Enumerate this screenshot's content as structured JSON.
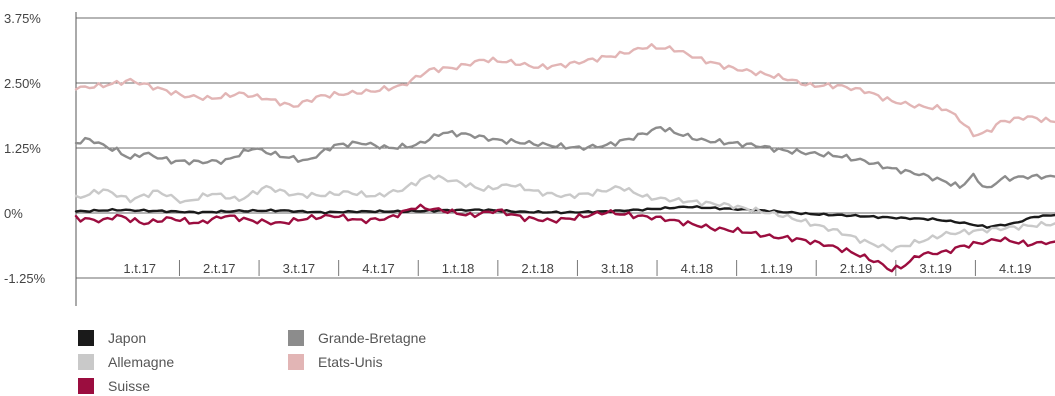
{
  "chart_data": {
    "type": "line",
    "title": "",
    "xlabel": "",
    "ylabel": "",
    "ylim": [
      -1.75,
      3.75
    ],
    "xlim": [
      0,
      144
    ],
    "y_ticks": [
      {
        "value": -1.25,
        "label": "-1.25%"
      },
      {
        "value": 0,
        "label": "0%"
      },
      {
        "value": 1.25,
        "label": "1.25%"
      },
      {
        "value": 2.5,
        "label": "2.50%"
      },
      {
        "value": 3.75,
        "label": "3.75%"
      }
    ],
    "x_categories": [
      "1.t.17",
      "2.t.17",
      "3.t.17",
      "4.t.17",
      "1.t.18",
      "2.t.18",
      "3.t.18",
      "4.t.18",
      "1.t.19",
      "2.t.19",
      "3.t.19",
      "4.t.19"
    ],
    "grid": "horizontal",
    "legend_position": "bottom-left",
    "series": [
      {
        "name": "Japon",
        "color": "#1a1a1a",
        "width": 2.4,
        "points": [
          [
            0,
            0.03
          ],
          [
            6,
            0.06
          ],
          [
            12,
            0.04
          ],
          [
            18,
            0.01
          ],
          [
            24,
            0.04
          ],
          [
            30,
            0.05
          ],
          [
            36,
            0.01
          ],
          [
            42,
            0.03
          ],
          [
            48,
            0.03
          ],
          [
            54,
            0.05
          ],
          [
            60,
            0.06
          ],
          [
            66,
            0.02
          ],
          [
            72,
            0.01
          ],
          [
            78,
            0.03
          ],
          [
            84,
            0.07
          ],
          [
            90,
            0.12
          ],
          [
            96,
            0.08
          ],
          [
            102,
            0.04
          ],
          [
            108,
            -0.02
          ],
          [
            114,
            -0.05
          ],
          [
            120,
            -0.09
          ],
          [
            126,
            -0.12
          ],
          [
            130,
            -0.18
          ],
          [
            134,
            -0.27
          ],
          [
            138,
            -0.2
          ],
          [
            141,
            -0.07
          ],
          [
            144,
            -0.04
          ]
        ]
      },
      {
        "name": "Allemagne",
        "color": "#c9c9c9",
        "width": 2.4,
        "points": [
          [
            0,
            0.28
          ],
          [
            4,
            0.45
          ],
          [
            8,
            0.25
          ],
          [
            12,
            0.42
          ],
          [
            16,
            0.2
          ],
          [
            20,
            0.38
          ],
          [
            24,
            0.25
          ],
          [
            28,
            0.5
          ],
          [
            32,
            0.35
          ],
          [
            36,
            0.34
          ],
          [
            40,
            0.4
          ],
          [
            44,
            0.32
          ],
          [
            48,
            0.45
          ],
          [
            52,
            0.72
          ],
          [
            56,
            0.6
          ],
          [
            60,
            0.45
          ],
          [
            64,
            0.55
          ],
          [
            68,
            0.4
          ],
          [
            72,
            0.32
          ],
          [
            76,
            0.38
          ],
          [
            80,
            0.5
          ],
          [
            84,
            0.3
          ],
          [
            88,
            0.25
          ],
          [
            92,
            0.2
          ],
          [
            96,
            0.15
          ],
          [
            100,
            0.05
          ],
          [
            104,
            -0.05
          ],
          [
            108,
            -0.2
          ],
          [
            112,
            -0.35
          ],
          [
            116,
            -0.55
          ],
          [
            120,
            -0.7
          ],
          [
            124,
            -0.55
          ],
          [
            128,
            -0.4
          ],
          [
            132,
            -0.35
          ],
          [
            136,
            -0.3
          ],
          [
            140,
            -0.25
          ],
          [
            144,
            -0.2
          ]
        ]
      },
      {
        "name": "Suisse",
        "color": "#9b0d3f",
        "width": 2.4,
        "points": [
          [
            0,
            -0.1
          ],
          [
            4,
            -0.15
          ],
          [
            6,
            -0.05
          ],
          [
            10,
            -0.2
          ],
          [
            14,
            -0.1
          ],
          [
            18,
            -0.2
          ],
          [
            22,
            -0.05
          ],
          [
            26,
            -0.15
          ],
          [
            30,
            -0.2
          ],
          [
            34,
            -0.1
          ],
          [
            38,
            -0.05
          ],
          [
            42,
            -0.15
          ],
          [
            46,
            -0.1
          ],
          [
            50,
            0.12
          ],
          [
            54,
            0.05
          ],
          [
            58,
            -0.05
          ],
          [
            62,
            0.05
          ],
          [
            66,
            -0.1
          ],
          [
            70,
            -0.15
          ],
          [
            74,
            -0.08
          ],
          [
            78,
            0.02
          ],
          [
            82,
            -0.05
          ],
          [
            86,
            -0.1
          ],
          [
            90,
            -0.2
          ],
          [
            94,
            -0.3
          ],
          [
            98,
            -0.35
          ],
          [
            102,
            -0.45
          ],
          [
            106,
            -0.5
          ],
          [
            110,
            -0.6
          ],
          [
            114,
            -0.75
          ],
          [
            118,
            -0.95
          ],
          [
            120,
            -1.1
          ],
          [
            122,
            -1.0
          ],
          [
            124,
            -0.8
          ],
          [
            128,
            -0.75
          ],
          [
            130,
            -0.65
          ],
          [
            134,
            -0.55
          ],
          [
            136,
            -0.5
          ],
          [
            140,
            -0.6
          ],
          [
            144,
            -0.55
          ]
        ]
      },
      {
        "name": "Grande-Bretagne",
        "color": "#8c8c8c",
        "width": 2.4,
        "points": [
          [
            0,
            1.35
          ],
          [
            2,
            1.42
          ],
          [
            4,
            1.3
          ],
          [
            6,
            1.2
          ],
          [
            8,
            1.05
          ],
          [
            10,
            1.15
          ],
          [
            14,
            1.0
          ],
          [
            18,
            0.98
          ],
          [
            22,
            1.0
          ],
          [
            26,
            1.25
          ],
          [
            30,
            1.1
          ],
          [
            34,
            1.0
          ],
          [
            38,
            1.3
          ],
          [
            42,
            1.35
          ],
          [
            46,
            1.25
          ],
          [
            50,
            1.3
          ],
          [
            54,
            1.55
          ],
          [
            58,
            1.5
          ],
          [
            62,
            1.4
          ],
          [
            66,
            1.35
          ],
          [
            70,
            1.3
          ],
          [
            74,
            1.25
          ],
          [
            78,
            1.3
          ],
          [
            82,
            1.45
          ],
          [
            86,
            1.65
          ],
          [
            88,
            1.55
          ],
          [
            92,
            1.4
          ],
          [
            96,
            1.35
          ],
          [
            100,
            1.3
          ],
          [
            104,
            1.2
          ],
          [
            108,
            1.15
          ],
          [
            112,
            1.1
          ],
          [
            116,
            1.0
          ],
          [
            120,
            0.85
          ],
          [
            124,
            0.75
          ],
          [
            128,
            0.6
          ],
          [
            130,
            0.5
          ],
          [
            132,
            0.72
          ],
          [
            134,
            0.45
          ],
          [
            136,
            0.65
          ],
          [
            140,
            0.7
          ],
          [
            144,
            0.7
          ]
        ]
      },
      {
        "name": "Etats-Unis",
        "color": "#e2b5b5",
        "width": 2.4,
        "points": [
          [
            0,
            2.4
          ],
          [
            4,
            2.45
          ],
          [
            8,
            2.55
          ],
          [
            12,
            2.4
          ],
          [
            16,
            2.25
          ],
          [
            20,
            2.2
          ],
          [
            24,
            2.3
          ],
          [
            28,
            2.2
          ],
          [
            32,
            2.05
          ],
          [
            36,
            2.25
          ],
          [
            40,
            2.3
          ],
          [
            44,
            2.35
          ],
          [
            48,
            2.45
          ],
          [
            52,
            2.75
          ],
          [
            56,
            2.8
          ],
          [
            60,
            2.95
          ],
          [
            64,
            2.9
          ],
          [
            68,
            2.8
          ],
          [
            72,
            2.85
          ],
          [
            76,
            2.95
          ],
          [
            80,
            3.05
          ],
          [
            84,
            3.2
          ],
          [
            88,
            3.15
          ],
          [
            92,
            2.95
          ],
          [
            96,
            2.8
          ],
          [
            100,
            2.7
          ],
          [
            104,
            2.6
          ],
          [
            108,
            2.45
          ],
          [
            112,
            2.45
          ],
          [
            116,
            2.35
          ],
          [
            120,
            2.15
          ],
          [
            124,
            2.05
          ],
          [
            128,
            2.0
          ],
          [
            130,
            1.8
          ],
          [
            132,
            1.5
          ],
          [
            134,
            1.55
          ],
          [
            136,
            1.75
          ],
          [
            140,
            1.85
          ],
          [
            144,
            1.75
          ]
        ]
      }
    ]
  }
}
